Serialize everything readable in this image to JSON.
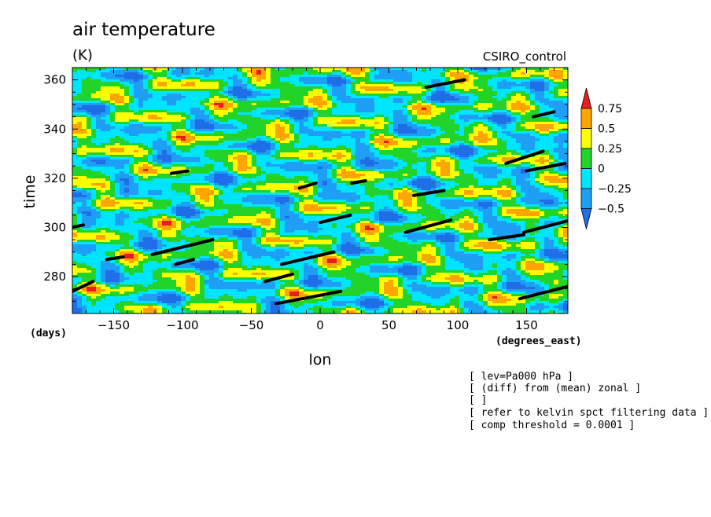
{
  "chart_data": {
    "type": "heatmap",
    "title": "air temperature",
    "subtitle": "(K)",
    "run_label": "CSIRO_control",
    "xlabel": "lon",
    "xunits": "(degrees_east)",
    "ylabel": "time",
    "yunits": "(days)",
    "xlim": [
      -180,
      180
    ],
    "ylim": [
      265,
      365
    ],
    "x_ticks": [
      -150,
      -100,
      -50,
      0,
      50,
      100,
      150
    ],
    "y_ticks": [
      280,
      300,
      320,
      340,
      360
    ],
    "x_tick_labels": [
      "−150",
      "−100",
      "−50",
      "0",
      "50",
      "100",
      "150"
    ],
    "y_tick_labels": [
      "280",
      "300",
      "320",
      "340",
      "360"
    ],
    "colorbar": {
      "levels": [
        -0.5,
        -0.25,
        0,
        0.25,
        0.5,
        0.75
      ],
      "labels": [
        "−0.5",
        "−0.25",
        "0",
        "0.25",
        "0.5",
        "0.75"
      ],
      "colors": [
        "#1e6ee8",
        "#1e9ff5",
        "#00e5ff",
        "#22d32a",
        "#ffff00",
        "#ffa500",
        "#e81e1e"
      ]
    },
    "threshold_segments": [
      {
        "x": [
          -180,
          -165
        ],
        "y": [
          274,
          278
        ]
      },
      {
        "x": [
          -180,
          -172
        ],
        "y": [
          300,
          301
        ]
      },
      {
        "x": [
          -155,
          -143
        ],
        "y": [
          287,
          288
        ]
      },
      {
        "x": [
          -122,
          -78
        ],
        "y": [
          289,
          295
        ]
      },
      {
        "x": [
          -105,
          -92
        ],
        "y": [
          285,
          287
        ]
      },
      {
        "x": [
          -108,
          -96
        ],
        "y": [
          322,
          323
        ]
      },
      {
        "x": [
          -40,
          -20
        ],
        "y": [
          278,
          281
        ]
      },
      {
        "x": [
          -28,
          10
        ],
        "y": [
          285,
          290
        ]
      },
      {
        "x": [
          -32,
          15
        ],
        "y": [
          269,
          274
        ]
      },
      {
        "x": [
          -15,
          -3
        ],
        "y": [
          316,
          318
        ]
      },
      {
        "x": [
          0,
          22
        ],
        "y": [
          302,
          305
        ]
      },
      {
        "x": [
          23,
          33
        ],
        "y": [
          318,
          319
        ]
      },
      {
        "x": [
          62,
          95
        ],
        "y": [
          298,
          303
        ]
      },
      {
        "x": [
          68,
          90
        ],
        "y": [
          313,
          315
        ]
      },
      {
        "x": [
          77,
          105
        ],
        "y": [
          357,
          360
        ]
      },
      {
        "x": [
          123,
          148
        ],
        "y": [
          295,
          297
        ]
      },
      {
        "x": [
          135,
          162
        ],
        "y": [
          326,
          331
        ]
      },
      {
        "x": [
          150,
          178
        ],
        "y": [
          323,
          326
        ]
      },
      {
        "x": [
          148,
          182
        ],
        "y": [
          298,
          303
        ]
      },
      {
        "x": [
          145,
          180
        ],
        "y": [
          271,
          276
        ]
      },
      {
        "x": [
          155,
          170
        ],
        "y": [
          345,
          347
        ]
      }
    ]
  },
  "footnotes": [
    "[ lev=Pa000 hPa ]",
    "[ (diff) from (mean) zonal ]",
    "[  ]",
    "[ refer to kelvin spct filtering data ]",
    "[ comp threshold = 0.0001 ]"
  ]
}
